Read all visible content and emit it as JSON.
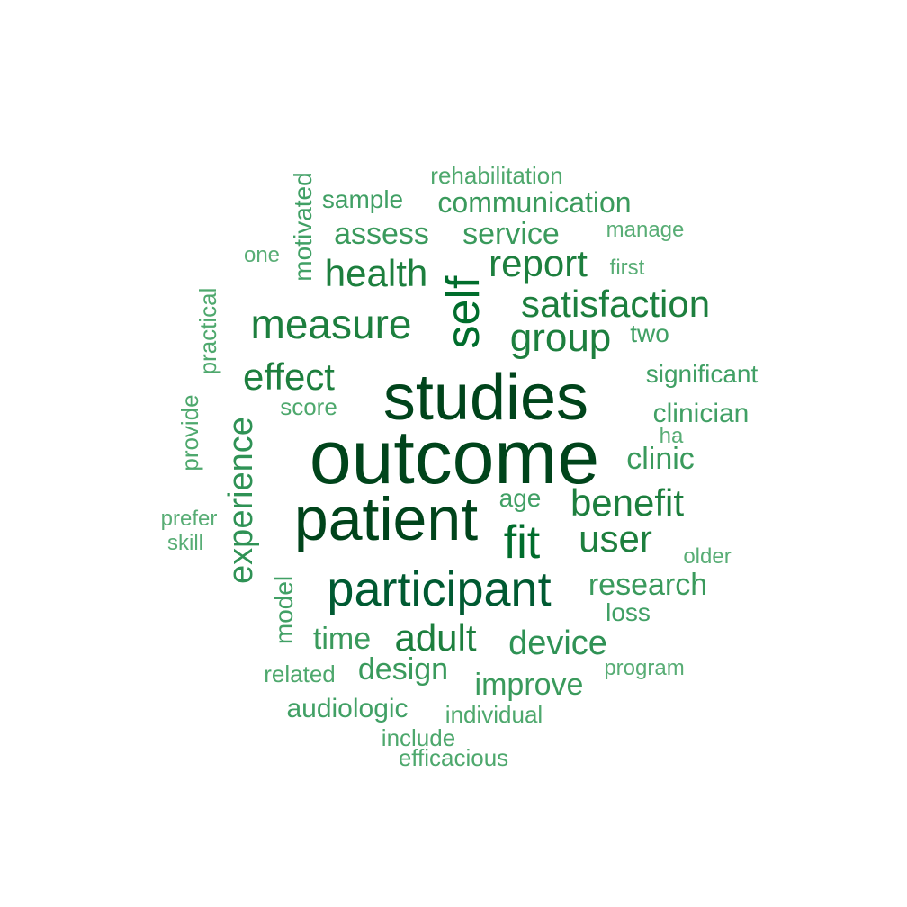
{
  "words": [
    {
      "text": "outcome",
      "color": "#00441b"
    },
    {
      "text": "studies",
      "color": "#00441b"
    },
    {
      "text": "patient",
      "color": "#00441b"
    },
    {
      "text": "participant",
      "color": "#005a32"
    },
    {
      "text": "self",
      "color": "#006d2c"
    },
    {
      "text": "fit",
      "color": "#006d2c"
    },
    {
      "text": "measure",
      "color": "#1d7f3e"
    },
    {
      "text": "group",
      "color": "#1d7f3e"
    },
    {
      "text": "satisfaction",
      "color": "#1d7f3e"
    },
    {
      "text": "effect",
      "color": "#1d7f3e"
    },
    {
      "text": "health",
      "color": "#1d7f3e"
    },
    {
      "text": "report",
      "color": "#1d7f3e"
    },
    {
      "text": "benefit",
      "color": "#1d7f3e"
    },
    {
      "text": "user",
      "color": "#1d7f3e"
    },
    {
      "text": "adult",
      "color": "#1d7f3e"
    },
    {
      "text": "experience",
      "color": "#2f9255"
    },
    {
      "text": "device",
      "color": "#2f9255"
    },
    {
      "text": "research",
      "color": "#3a9a5c"
    },
    {
      "text": "service",
      "color": "#3a9a5c"
    },
    {
      "text": "assess",
      "color": "#3a9a5c"
    },
    {
      "text": "communication",
      "color": "#3a9a5c"
    },
    {
      "text": "time",
      "color": "#3a9a5c"
    },
    {
      "text": "design",
      "color": "#3a9a5c"
    },
    {
      "text": "improve",
      "color": "#3a9a5c"
    },
    {
      "text": "clinic",
      "color": "#3a9a5c"
    },
    {
      "text": "clinician",
      "color": "#41a065"
    },
    {
      "text": "motivated",
      "color": "#41a065"
    },
    {
      "text": "model",
      "color": "#41a065"
    },
    {
      "text": "audiologic",
      "color": "#41a065"
    },
    {
      "text": "sample",
      "color": "#41a065"
    },
    {
      "text": "significant",
      "color": "#41a065"
    },
    {
      "text": "age",
      "color": "#41a065"
    },
    {
      "text": "loss",
      "color": "#41a065"
    },
    {
      "text": "two",
      "color": "#41a065"
    },
    {
      "text": "rehabilitation",
      "color": "#4ea86d"
    },
    {
      "text": "individual",
      "color": "#4ea86d"
    },
    {
      "text": "efficacious",
      "color": "#4ea86d"
    },
    {
      "text": "related",
      "color": "#4ea86d"
    },
    {
      "text": "include",
      "color": "#4ea86d"
    },
    {
      "text": "practical",
      "color": "#4ea86d"
    },
    {
      "text": "provide",
      "color": "#4ea86d"
    },
    {
      "text": "score",
      "color": "#4ea86d"
    },
    {
      "text": "manage",
      "color": "#58ad75"
    },
    {
      "text": "program",
      "color": "#58ad75"
    },
    {
      "text": "older",
      "color": "#58ad75"
    },
    {
      "text": "first",
      "color": "#58ad75"
    },
    {
      "text": "one",
      "color": "#58ad75"
    },
    {
      "text": "prefer",
      "color": "#58ad75"
    },
    {
      "text": "skill",
      "color": "#58ad75"
    },
    {
      "text": "ha",
      "color": "#58ad75"
    }
  ]
}
